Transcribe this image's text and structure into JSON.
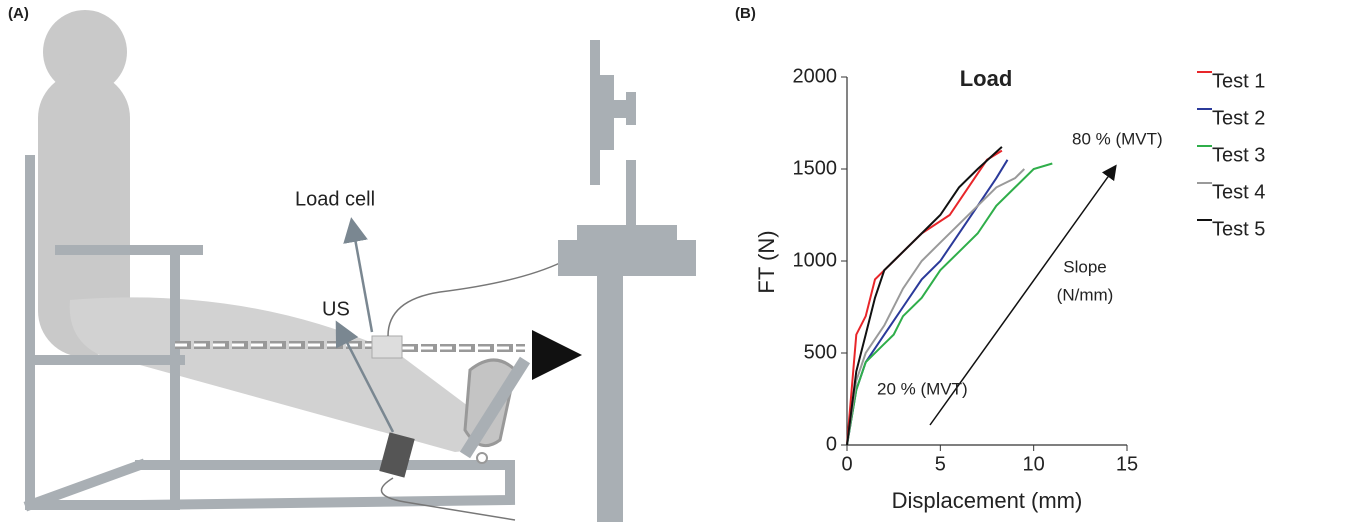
{
  "panel_a": {
    "label": "(A)",
    "load_cell": "Load cell",
    "us": "US"
  },
  "chart_data": {
    "type": "line",
    "panel_label": "(B)",
    "title": "Load",
    "ylabel": "FT (N)",
    "xlabel": "Displacement (mm)",
    "xlim": [
      0,
      15
    ],
    "ylim": [
      0,
      2000
    ],
    "xticks": [
      0,
      5,
      10,
      15
    ],
    "yticks": [
      0,
      500,
      1000,
      1500,
      2000
    ],
    "annotations": [
      "80 % (MVT)",
      "Slope",
      "(N/mm)",
      "20 % (MVT)"
    ],
    "series": [
      {
        "name": "Test 1",
        "color": "#e8262a",
        "x": [
          0,
          0.5,
          1,
          1.5,
          2.5,
          4,
          5.5,
          6.5,
          7.5,
          8.3
        ],
        "values": [
          0,
          600,
          700,
          900,
          1000,
          1150,
          1250,
          1400,
          1550,
          1600
        ]
      },
      {
        "name": "Test 2",
        "color": "#2b3a9a",
        "x": [
          0,
          0.5,
          1,
          2,
          3,
          4,
          5,
          6,
          7,
          8,
          8.6
        ],
        "values": [
          0,
          300,
          450,
          600,
          750,
          900,
          1000,
          1150,
          1300,
          1450,
          1550
        ]
      },
      {
        "name": "Test 3",
        "color": "#2fae4a",
        "x": [
          0,
          0.5,
          1,
          2,
          2.5,
          3,
          4,
          5,
          6,
          7,
          8,
          9,
          10,
          11
        ],
        "values": [
          0,
          300,
          450,
          550,
          600,
          700,
          800,
          950,
          1050,
          1150,
          1300,
          1400,
          1500,
          1530
        ]
      },
      {
        "name": "Test 4",
        "color": "#9a9a9a",
        "x": [
          0,
          0.5,
          1,
          2,
          3,
          4,
          5,
          6,
          7,
          8,
          9,
          9.5
        ],
        "values": [
          0,
          350,
          500,
          650,
          850,
          1000,
          1100,
          1200,
          1300,
          1400,
          1450,
          1500
        ]
      },
      {
        "name": "Test 5",
        "color": "#111111",
        "x": [
          0,
          0.5,
          1,
          1.5,
          2,
          3,
          4,
          5,
          6,
          7,
          8.3
        ],
        "values": [
          0,
          400,
          600,
          800,
          950,
          1050,
          1150,
          1250,
          1400,
          1500,
          1620
        ]
      }
    ]
  }
}
